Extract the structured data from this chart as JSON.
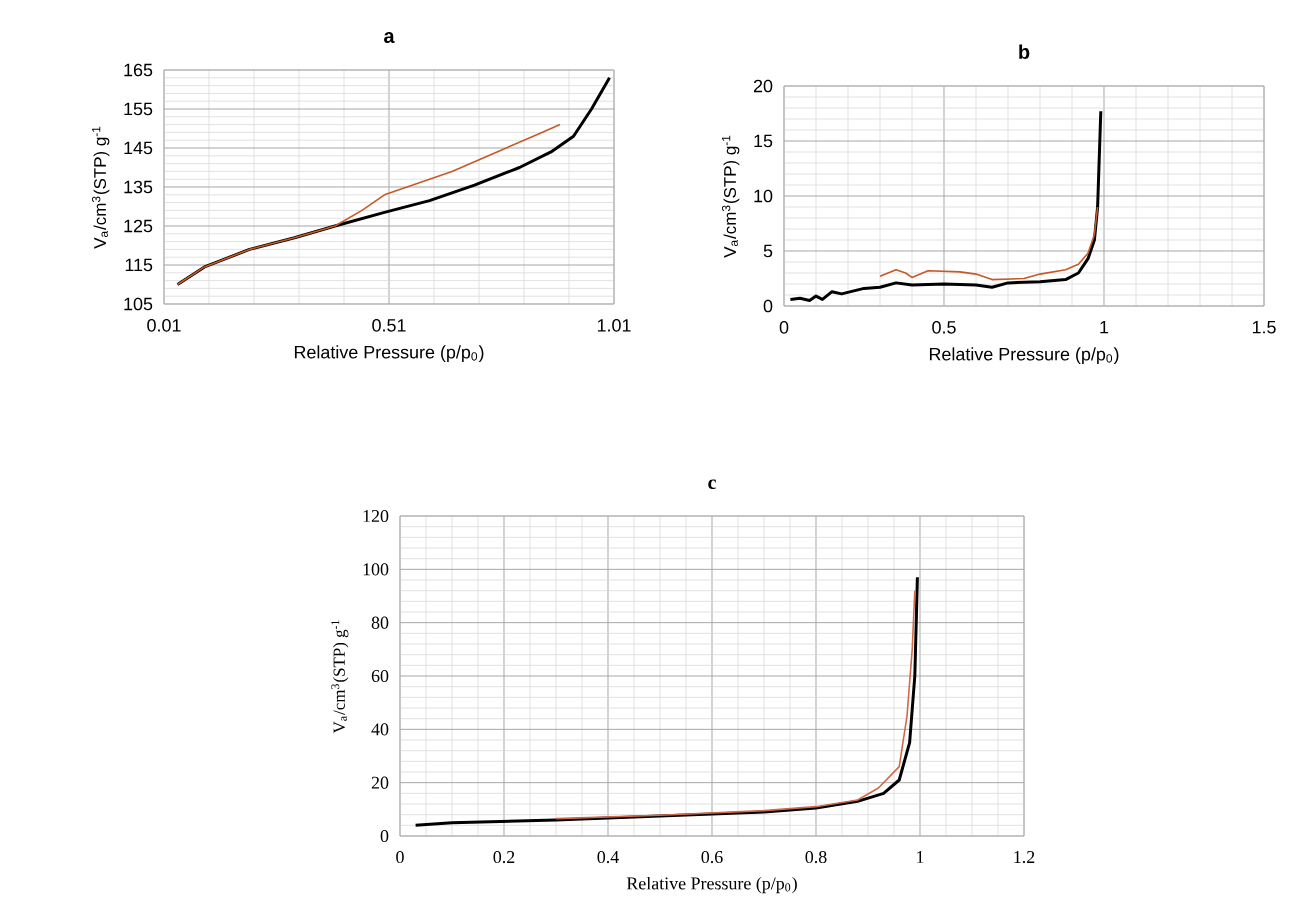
{
  "chart_data": [
    {
      "type": "line",
      "title": "a",
      "xlabel": "Relative Pressure (p/p$_{0}$)",
      "ylabel": "V$_{a}$/cm$^{3}$(STP) g$^{-1}$",
      "xlim": [
        0.01,
        1.01
      ],
      "ylim": [
        105,
        165
      ],
      "xticks": [
        0.01,
        0.51,
        1.01
      ],
      "yticks": [
        105,
        115,
        125,
        135,
        145,
        155,
        165
      ],
      "grid": true,
      "marker": "none",
      "line_style": "solid",
      "series": [
        {
          "color": "#000000",
          "x": [
            0.04,
            0.1,
            0.2,
            0.3,
            0.39,
            0.5,
            0.6,
            0.7,
            0.8,
            0.87,
            0.92,
            0.96,
            1.0
          ],
          "values": [
            110,
            114.5,
            119,
            122,
            125,
            128.5,
            131.5,
            135.5,
            140,
            144,
            148,
            155,
            163
          ]
        },
        {
          "color": "#c55a28",
          "x": [
            0.04,
            0.1,
            0.2,
            0.3,
            0.39,
            0.45,
            0.5,
            0.55,
            0.65,
            0.75,
            0.85,
            0.89
          ],
          "values": [
            110,
            114.5,
            119,
            122,
            125,
            129,
            133,
            135,
            139,
            144,
            149,
            151
          ]
        }
      ]
    },
    {
      "type": "line",
      "title": "b",
      "xlabel": "Relative Pressure (p/p$_{0}$)",
      "ylabel": "V$_{a}$/cm$^{3}$(STP) g$^{-1}$",
      "xlim": [
        0,
        1.5
      ],
      "ylim": [
        0,
        20
      ],
      "xticks": [
        0,
        0.5,
        1,
        1.5
      ],
      "yticks": [
        0,
        5,
        10,
        15,
        20
      ],
      "grid": true,
      "marker": "none",
      "line_style": "solid",
      "series": [
        {
          "color": "#000000",
          "x": [
            0.02,
            0.05,
            0.08,
            0.1,
            0.12,
            0.15,
            0.18,
            0.25,
            0.3,
            0.35,
            0.4,
            0.5,
            0.6,
            0.65,
            0.7,
            0.8,
            0.88,
            0.92,
            0.95,
            0.97,
            0.98,
            0.99
          ],
          "values": [
            0.6,
            0.7,
            0.5,
            0.9,
            0.6,
            1.3,
            1.1,
            1.6,
            1.7,
            2.1,
            1.9,
            2.0,
            1.9,
            1.7,
            2.1,
            2.2,
            2.4,
            3.0,
            4.3,
            6,
            9,
            17.7
          ]
        },
        {
          "color": "#c55a28",
          "x": [
            0.3,
            0.35,
            0.38,
            0.4,
            0.45,
            0.55,
            0.6,
            0.65,
            0.75,
            0.8,
            0.88,
            0.92,
            0.95,
            0.97,
            0.98
          ],
          "values": [
            2.7,
            3.3,
            3.0,
            2.6,
            3.2,
            3.1,
            2.9,
            2.4,
            2.5,
            2.9,
            3.3,
            3.8,
            4.8,
            6.5,
            9
          ]
        }
      ]
    },
    {
      "type": "line",
      "title": "c",
      "xlabel": "Relative Pressure (p/p$_{0}$)",
      "ylabel": "V$_{a}$/cm$^{3}$(STP) g$^{-1}$",
      "xlim": [
        0,
        1.2
      ],
      "ylim": [
        0,
        120
      ],
      "xticks": [
        0,
        0.2,
        0.4,
        0.6,
        0.8,
        1,
        1.2
      ],
      "yticks": [
        0,
        20,
        40,
        60,
        80,
        100,
        120
      ],
      "grid": true,
      "marker": "none",
      "line_style": "solid",
      "series": [
        {
          "color": "#000000",
          "x": [
            0.03,
            0.1,
            0.3,
            0.5,
            0.7,
            0.8,
            0.88,
            0.93,
            0.96,
            0.98,
            0.99,
            0.995
          ],
          "values": [
            4,
            5,
            6,
            7.5,
            9,
            10.5,
            13,
            16,
            21,
            35,
            60,
            97
          ]
        },
        {
          "color": "#d0694a",
          "x": [
            0.3,
            0.5,
            0.7,
            0.8,
            0.88,
            0.92,
            0.96,
            0.975,
            0.985,
            0.99
          ],
          "values": [
            6.5,
            7.8,
            9.5,
            11,
            13.5,
            18,
            26,
            45,
            70,
            92
          ]
        }
      ]
    }
  ]
}
